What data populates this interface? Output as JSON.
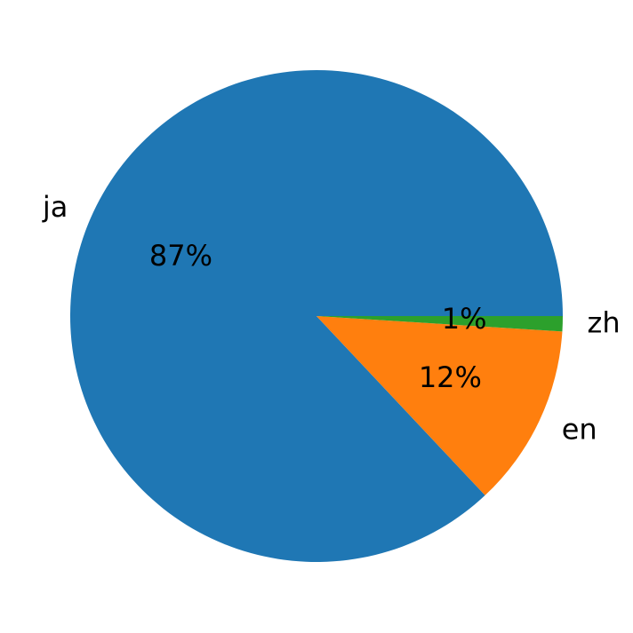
{
  "chart_data": {
    "type": "pie",
    "categories": [
      "ja",
      "en",
      "zh"
    ],
    "values": [
      87,
      12,
      1
    ],
    "value_labels": [
      "87%",
      "12%",
      "1%"
    ],
    "colors": [
      "#1f77b4",
      "#ff7f0e",
      "#2ca02c"
    ]
  }
}
